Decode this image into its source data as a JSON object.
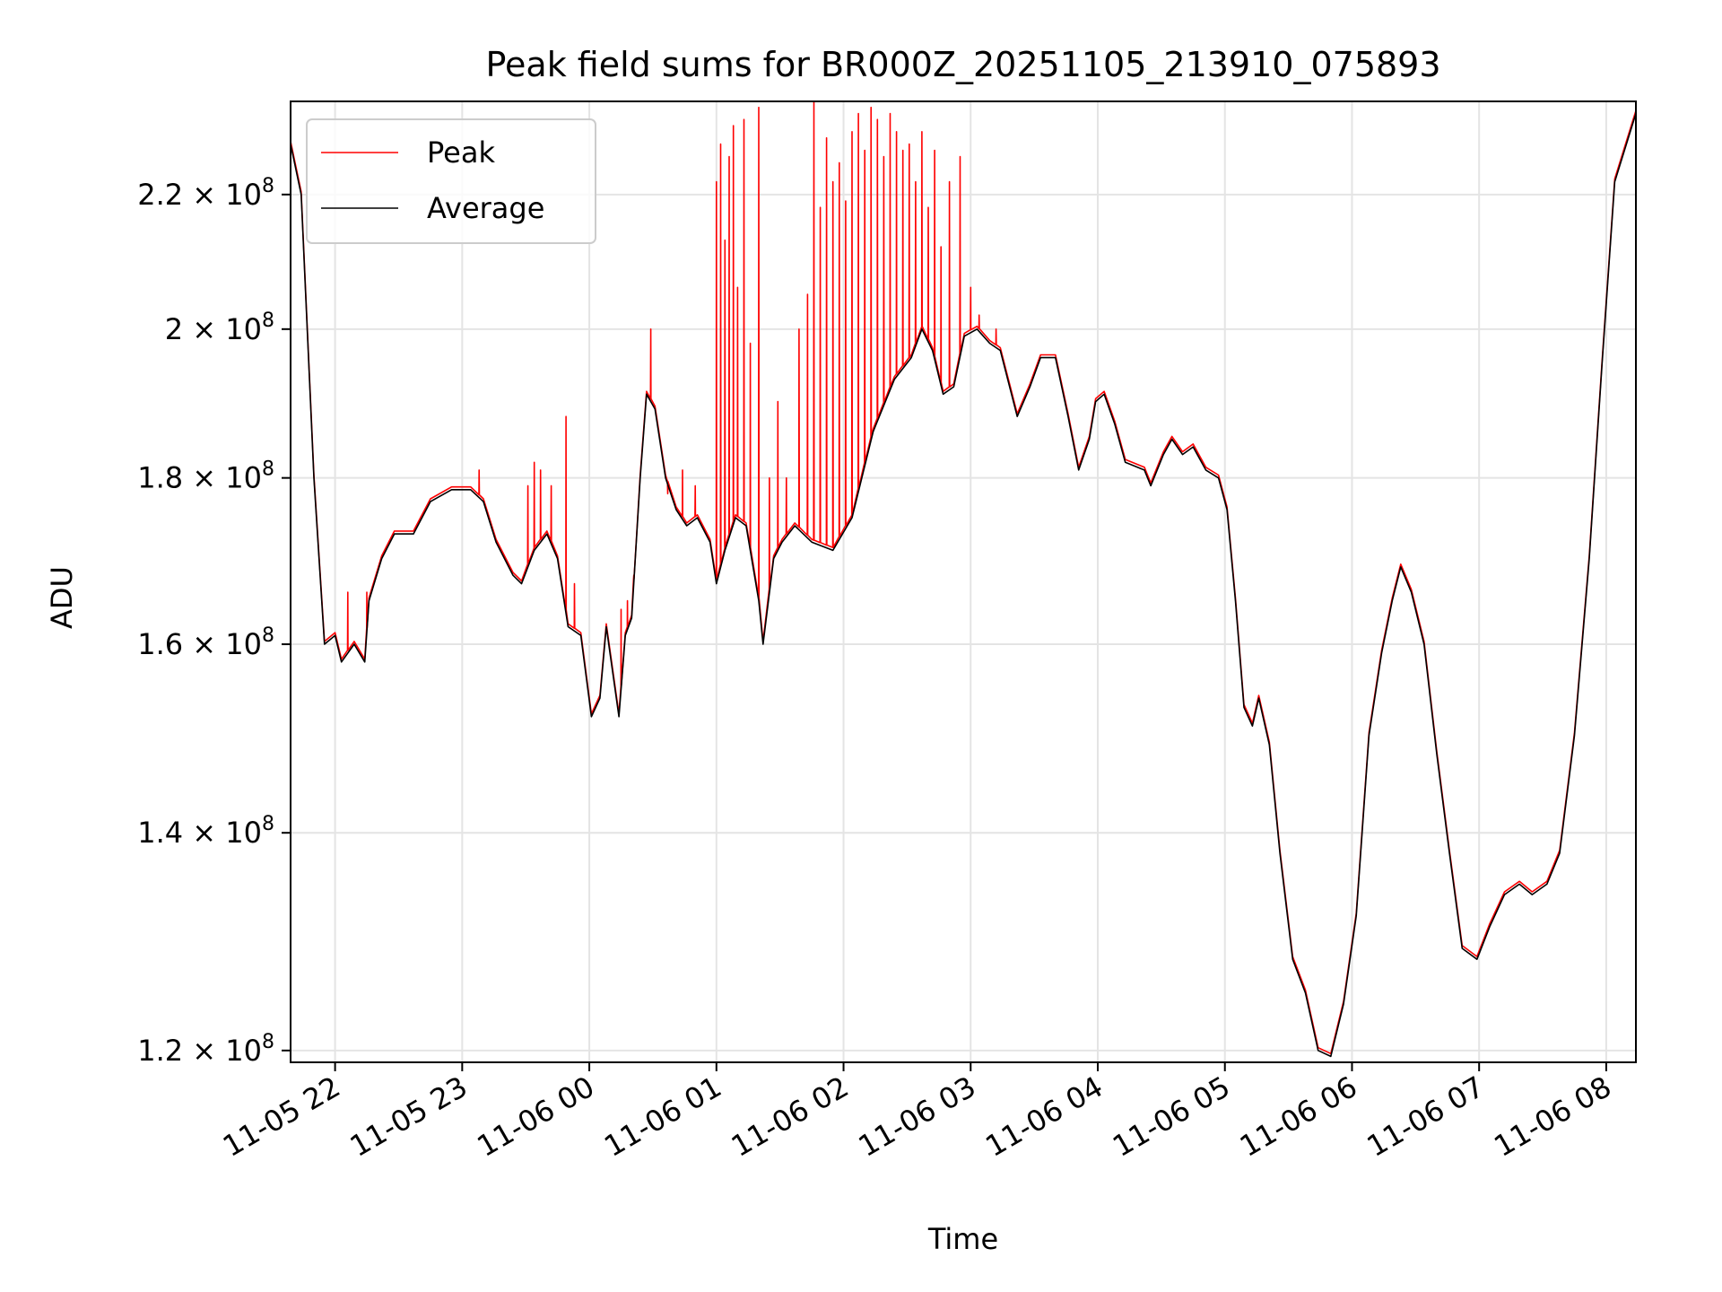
{
  "chart_data": {
    "type": "line",
    "title": "Peak field sums for BR000Z_20251105_213910_075893",
    "xlabel": "Time",
    "ylabel": "ADU",
    "y_scale": "log",
    "x_range": [
      "2025-11-05 21:39",
      "2025-11-06 08:14"
    ],
    "ylim": [
      119000000,
      235000000
    ],
    "x_ticks": [
      {
        "t": "2025-11-05 22:00",
        "label": "11-05 22"
      },
      {
        "t": "2025-11-05 23:00",
        "label": "11-05 23"
      },
      {
        "t": "2025-11-06 00:00",
        "label": "11-06 00"
      },
      {
        "t": "2025-11-06 01:00",
        "label": "11-06 01"
      },
      {
        "t": "2025-11-06 02:00",
        "label": "11-06 02"
      },
      {
        "t": "2025-11-06 03:00",
        "label": "11-06 03"
      },
      {
        "t": "2025-11-06 04:00",
        "label": "11-06 04"
      },
      {
        "t": "2025-11-06 05:00",
        "label": "11-06 05"
      },
      {
        "t": "2025-11-06 06:00",
        "label": "11-06 06"
      },
      {
        "t": "2025-11-06 07:00",
        "label": "11-06 07"
      },
      {
        "t": "2025-11-06 08:00",
        "label": "11-06 08"
      }
    ],
    "y_ticks": [
      {
        "value": 120000000,
        "mantissa": "1.2",
        "exponent": "8"
      },
      {
        "value": 140000000,
        "mantissa": "1.4",
        "exponent": "8"
      },
      {
        "value": 160000000,
        "mantissa": "1.6",
        "exponent": "8"
      },
      {
        "value": 180000000,
        "mantissa": "1.8",
        "exponent": "8"
      },
      {
        "value": 200000000,
        "mantissa": "2",
        "exponent": "8"
      },
      {
        "value": 220000000,
        "mantissa": "2.2",
        "exponent": "8"
      }
    ],
    "grid": true,
    "legend_position": "upper-left",
    "series": [
      {
        "name": "Average",
        "color": "#000000",
        "points": [
          [
            "2025-11-05 21:39",
            228000000
          ],
          [
            "2025-11-05 21:44",
            220000000
          ],
          [
            "2025-11-05 21:50",
            180000000
          ],
          [
            "2025-11-05 21:55",
            160000000
          ],
          [
            "2025-11-05 22:00",
            161000000
          ],
          [
            "2025-11-05 22:03",
            158000000
          ],
          [
            "2025-11-05 22:09",
            160000000
          ],
          [
            "2025-11-05 22:14",
            158000000
          ],
          [
            "2025-11-05 22:16",
            165000000
          ],
          [
            "2025-11-05 22:22",
            170000000
          ],
          [
            "2025-11-05 22:28",
            173000000
          ],
          [
            "2025-11-05 22:37",
            173000000
          ],
          [
            "2025-11-05 22:45",
            177000000
          ],
          [
            "2025-11-05 22:55",
            178500000
          ],
          [
            "2025-11-05 23:04",
            178500000
          ],
          [
            "2025-11-05 23:10",
            177000000
          ],
          [
            "2025-11-05 23:16",
            172000000
          ],
          [
            "2025-11-05 23:24",
            168000000
          ],
          [
            "2025-11-05 23:28",
            167000000
          ],
          [
            "2025-11-05 23:34",
            171000000
          ],
          [
            "2025-11-05 23:40",
            173000000
          ],
          [
            "2025-11-05 23:45",
            170000000
          ],
          [
            "2025-11-05 23:50",
            162000000
          ],
          [
            "2025-11-05 23:56",
            161000000
          ],
          [
            "2025-11-06 00:01",
            152000000
          ],
          [
            "2025-11-06 00:05",
            154000000
          ],
          [
            "2025-11-06 00:08",
            162000000
          ],
          [
            "2025-11-06 00:14",
            152000000
          ],
          [
            "2025-11-06 00:17",
            161000000
          ],
          [
            "2025-11-06 00:20",
            163000000
          ],
          [
            "2025-11-06 00:24",
            180000000
          ],
          [
            "2025-11-06 00:27",
            191000000
          ],
          [
            "2025-11-06 00:31",
            189000000
          ],
          [
            "2025-11-06 00:36",
            180000000
          ],
          [
            "2025-11-06 00:41",
            176000000
          ],
          [
            "2025-11-06 00:46",
            174000000
          ],
          [
            "2025-11-06 00:51",
            175000000
          ],
          [
            "2025-11-06 00:57",
            172000000
          ],
          [
            "2025-11-06 01:00",
            167000000
          ],
          [
            "2025-11-06 01:04",
            171000000
          ],
          [
            "2025-11-06 01:09",
            175000000
          ],
          [
            "2025-11-06 01:14",
            174000000
          ],
          [
            "2025-11-06 01:20",
            165000000
          ],
          [
            "2025-11-06 01:22",
            160000000
          ],
          [
            "2025-11-06 01:27",
            170000000
          ],
          [
            "2025-11-06 01:31",
            172000000
          ],
          [
            "2025-11-06 01:37",
            174000000
          ],
          [
            "2025-11-06 01:45",
            172000000
          ],
          [
            "2025-11-06 01:55",
            171000000
          ],
          [
            "2025-11-06 02:04",
            175000000
          ],
          [
            "2025-11-06 02:14",
            186000000
          ],
          [
            "2025-11-06 02:24",
            193000000
          ],
          [
            "2025-11-06 02:32",
            196000000
          ],
          [
            "2025-11-06 02:37",
            200000000
          ],
          [
            "2025-11-06 02:42",
            197000000
          ],
          [
            "2025-11-06 02:47",
            191000000
          ],
          [
            "2025-11-06 02:52",
            192000000
          ],
          [
            "2025-11-06 02:57",
            199000000
          ],
          [
            "2025-11-06 03:03",
            200000000
          ],
          [
            "2025-11-06 03:09",
            198000000
          ],
          [
            "2025-11-06 03:14",
            197000000
          ],
          [
            "2025-11-06 03:22",
            188000000
          ],
          [
            "2025-11-06 03:28",
            192000000
          ],
          [
            "2025-11-06 03:33",
            196000000
          ],
          [
            "2025-11-06 03:40",
            196000000
          ],
          [
            "2025-11-06 03:46",
            188000000
          ],
          [
            "2025-11-06 03:51",
            181000000
          ],
          [
            "2025-11-06 03:56",
            185000000
          ],
          [
            "2025-11-06 03:59",
            190000000
          ],
          [
            "2025-11-06 04:03",
            191000000
          ],
          [
            "2025-11-06 04:08",
            187000000
          ],
          [
            "2025-11-06 04:13",
            182000000
          ],
          [
            "2025-11-06 04:22",
            181000000
          ],
          [
            "2025-11-06 04:25",
            179000000
          ],
          [
            "2025-11-06 04:31",
            183000000
          ],
          [
            "2025-11-06 04:35",
            185000000
          ],
          [
            "2025-11-06 04:40",
            183000000
          ],
          [
            "2025-11-06 04:45",
            184000000
          ],
          [
            "2025-11-06 04:51",
            181000000
          ],
          [
            "2025-11-06 04:57",
            180000000
          ],
          [
            "2025-11-06 05:01",
            176000000
          ],
          [
            "2025-11-06 05:05",
            165000000
          ],
          [
            "2025-11-06 05:09",
            153000000
          ],
          [
            "2025-11-06 05:13",
            151000000
          ],
          [
            "2025-11-06 05:16",
            154000000
          ],
          [
            "2025-11-06 05:21",
            149000000
          ],
          [
            "2025-11-06 05:26",
            138000000
          ],
          [
            "2025-11-06 05:32",
            128000000
          ],
          [
            "2025-11-06 05:38",
            125000000
          ],
          [
            "2025-11-06 05:44",
            120000000
          ],
          [
            "2025-11-06 05:50",
            119500000
          ],
          [
            "2025-11-06 05:56",
            124000000
          ],
          [
            "2025-11-06 06:02",
            132000000
          ],
          [
            "2025-11-06 06:08",
            150000000
          ],
          [
            "2025-11-06 06:14",
            159000000
          ],
          [
            "2025-11-06 06:19",
            165000000
          ],
          [
            "2025-11-06 06:23",
            169000000
          ],
          [
            "2025-11-06 06:28",
            166000000
          ],
          [
            "2025-11-06 06:34",
            160000000
          ],
          [
            "2025-11-06 06:40",
            148000000
          ],
          [
            "2025-11-06 06:46",
            138000000
          ],
          [
            "2025-11-06 06:52",
            129000000
          ],
          [
            "2025-11-06 06:59",
            128000000
          ],
          [
            "2025-11-06 07:05",
            131000000
          ],
          [
            "2025-11-06 07:12",
            134000000
          ],
          [
            "2025-11-06 07:19",
            135000000
          ],
          [
            "2025-11-06 07:25",
            134000000
          ],
          [
            "2025-11-06 07:32",
            135000000
          ],
          [
            "2025-11-06 07:38",
            138000000
          ],
          [
            "2025-11-06 07:45",
            150000000
          ],
          [
            "2025-11-06 07:52",
            170000000
          ],
          [
            "2025-11-06 07:58",
            195000000
          ],
          [
            "2025-11-06 08:04",
            222000000
          ],
          [
            "2025-11-06 08:14",
            233000000
          ]
        ]
      },
      {
        "name": "Peak",
        "color": "#ff0000",
        "note_baseline": "follows Average, with the listed spikes",
        "spikes": [
          [
            "2025-11-05 22:06",
            166000000
          ],
          [
            "2025-11-05 22:15",
            166000000
          ],
          [
            "2025-11-05 23:08",
            181000000
          ],
          [
            "2025-11-05 23:31",
            179000000
          ],
          [
            "2025-11-05 23:34",
            182000000
          ],
          [
            "2025-11-05 23:37",
            181000000
          ],
          [
            "2025-11-05 23:42",
            179000000
          ],
          [
            "2025-11-05 23:49",
            188000000
          ],
          [
            "2025-11-05 23:53",
            167000000
          ],
          [
            "2025-11-06 00:15",
            164000000
          ],
          [
            "2025-11-06 00:18",
            165000000
          ],
          [
            "2025-11-06 00:21",
            168000000
          ],
          [
            "2025-11-06 00:29",
            200000000
          ],
          [
            "2025-11-06 00:37",
            178000000
          ],
          [
            "2025-11-06 00:44",
            181000000
          ],
          [
            "2025-11-06 00:50",
            179000000
          ],
          [
            "2025-11-06 01:00",
            222000000
          ],
          [
            "2025-11-06 01:02",
            228000000
          ],
          [
            "2025-11-06 01:04",
            213000000
          ],
          [
            "2025-11-06 01:06",
            226000000
          ],
          [
            "2025-11-06 01:08",
            231000000
          ],
          [
            "2025-11-06 01:10",
            206000000
          ],
          [
            "2025-11-06 01:13",
            232000000
          ],
          [
            "2025-11-06 01:16",
            198000000
          ],
          [
            "2025-11-06 01:20",
            234000000
          ],
          [
            "2025-11-06 01:25",
            180000000
          ],
          [
            "2025-11-06 01:29",
            190000000
          ],
          [
            "2025-11-06 01:33",
            180000000
          ],
          [
            "2025-11-06 01:39",
            200000000
          ],
          [
            "2025-11-06 01:43",
            205000000
          ],
          [
            "2025-11-06 01:46",
            235000000
          ],
          [
            "2025-11-06 01:49",
            218000000
          ],
          [
            "2025-11-06 01:52",
            229000000
          ],
          [
            "2025-11-06 01:55",
            222000000
          ],
          [
            "2025-11-06 01:58",
            225000000
          ],
          [
            "2025-11-06 02:01",
            219000000
          ],
          [
            "2025-11-06 02:04",
            230000000
          ],
          [
            "2025-11-06 02:07",
            233000000
          ],
          [
            "2025-11-06 02:10",
            227000000
          ],
          [
            "2025-11-06 02:13",
            234000000
          ],
          [
            "2025-11-06 02:16",
            232000000
          ],
          [
            "2025-11-06 02:19",
            226000000
          ],
          [
            "2025-11-06 02:22",
            233000000
          ],
          [
            "2025-11-06 02:25",
            230000000
          ],
          [
            "2025-11-06 02:28",
            227000000
          ],
          [
            "2025-11-06 02:31",
            228000000
          ],
          [
            "2025-11-06 02:34",
            222000000
          ],
          [
            "2025-11-06 02:37",
            230000000
          ],
          [
            "2025-11-06 02:40",
            218000000
          ],
          [
            "2025-11-06 02:43",
            227000000
          ],
          [
            "2025-11-06 02:46",
            212000000
          ],
          [
            "2025-11-06 02:50",
            222000000
          ],
          [
            "2025-11-06 02:55",
            226000000
          ],
          [
            "2025-11-06 03:00",
            206000000
          ],
          [
            "2025-11-06 03:04",
            202000000
          ],
          [
            "2025-11-06 03:12",
            200000000
          ]
        ]
      }
    ]
  }
}
